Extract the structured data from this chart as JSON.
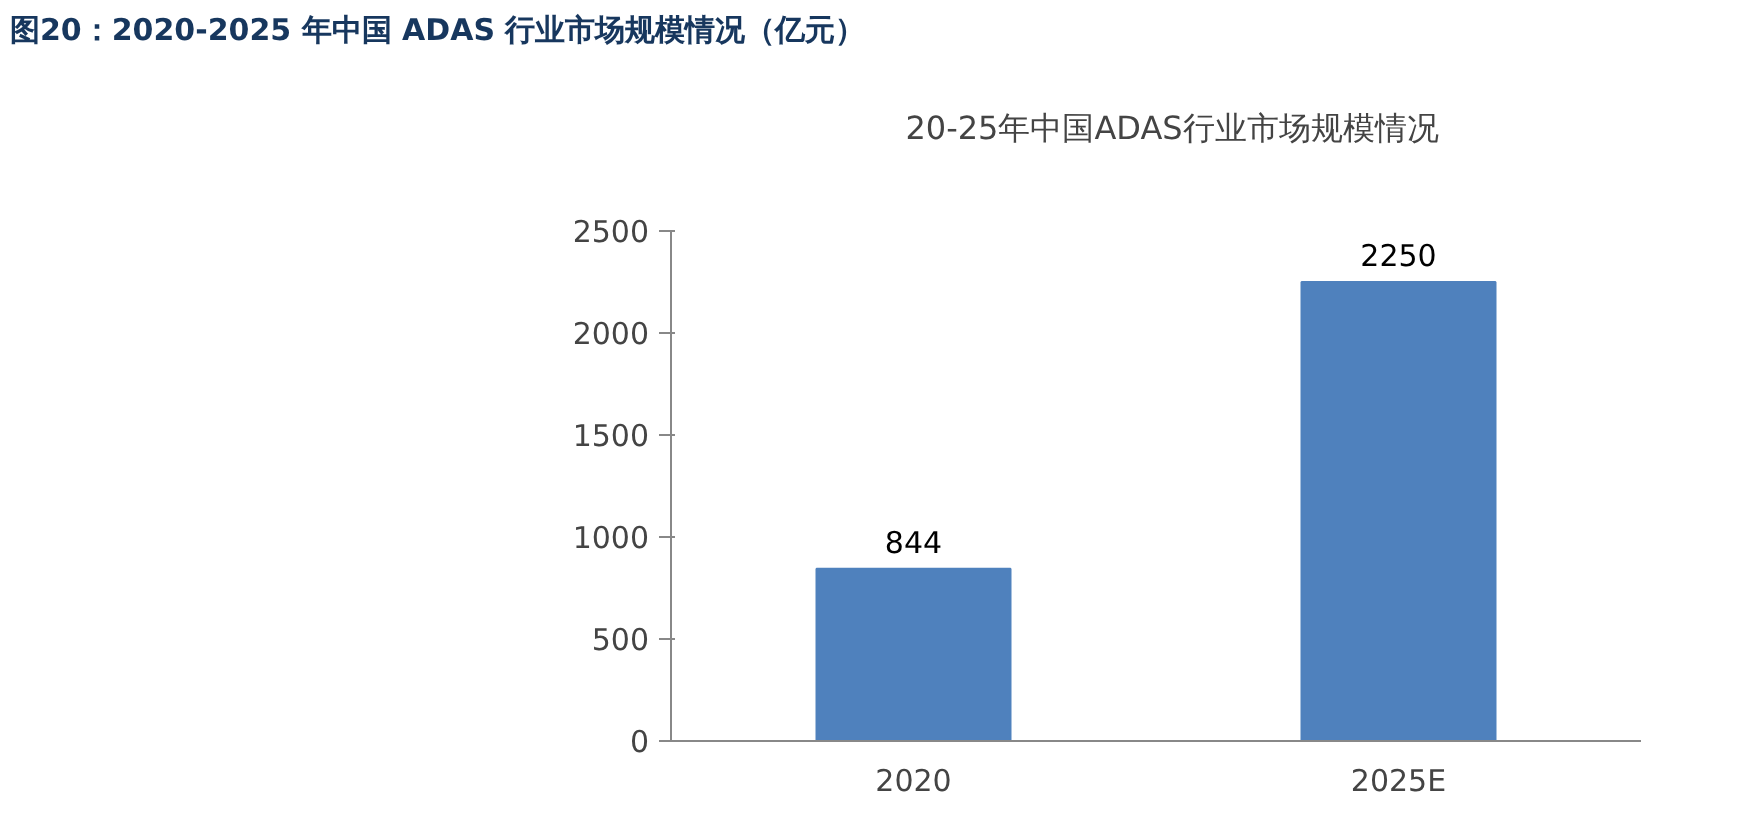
{
  "chart_data": {
    "type": "bar",
    "title": "图20：2020-2025 年中国 ADAS 行业市场规模情况（亿元）",
    "categories": [
      "2020",
      "2025E"
    ],
    "series": [
      {
        "name": "20-25年中国ADAS行业市场规模情况",
        "color": "#4f81bd",
        "values": [
          844,
          2250
        ]
      }
    ],
    "ylim": [
      0,
      2500
    ],
    "yticks": [
      0,
      500,
      1000,
      1500,
      2000,
      2500
    ],
    "grid": false,
    "legend": "top",
    "data_labels": true
  }
}
